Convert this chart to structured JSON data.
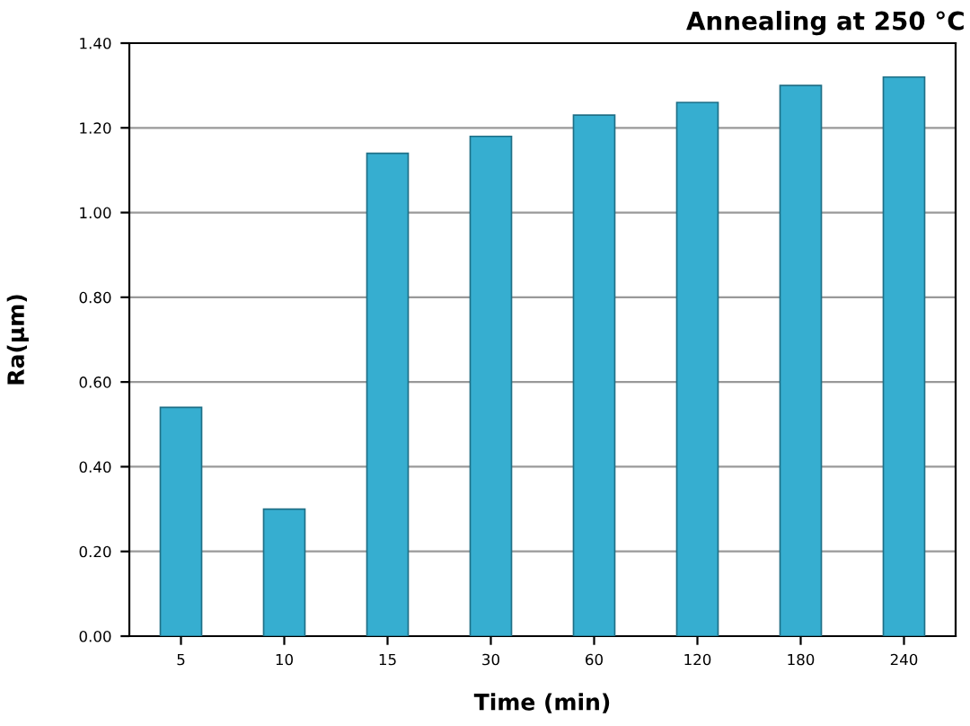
{
  "chart_data": {
    "type": "bar",
    "title": "Annealing at 250 °C",
    "xlabel": "Time (min)",
    "ylabel": "Ra(μm)",
    "categories": [
      "5",
      "10",
      "15",
      "30",
      "60",
      "120",
      "180",
      "240"
    ],
    "values": [
      0.54,
      0.3,
      1.14,
      1.18,
      1.23,
      1.26,
      1.3,
      1.32
    ],
    "color": "#36aed0",
    "ylim": [
      0,
      1.4
    ],
    "yticks": [
      {
        "value": 0,
        "label": "0.00"
      },
      {
        "value": 0.2,
        "label": "0.20"
      },
      {
        "value": 0.4,
        "label": "0.40"
      },
      {
        "value": 0.6,
        "label": "0.60"
      },
      {
        "value": 0.8,
        "label": "0.80"
      },
      {
        "value": 1.0,
        "label": "1.00"
      },
      {
        "value": 1.2,
        "label": "1.20"
      },
      {
        "value": 1.4,
        "label": "1.40"
      }
    ],
    "grid": "y"
  }
}
